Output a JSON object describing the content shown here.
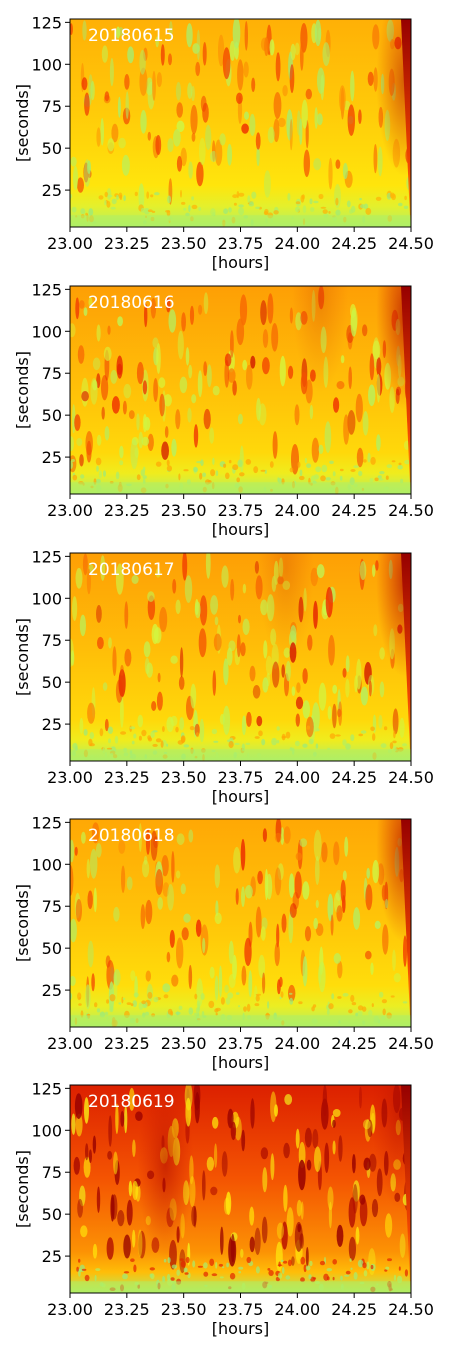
{
  "chart_data": [
    {
      "type": "heatmap",
      "title": "20180615",
      "xlabel": "[hours]",
      "ylabel": "[seconds]",
      "xlim": [
        23.0,
        24.5
      ],
      "ylim": [
        3,
        127
      ],
      "x_ticks": [
        "23.00",
        "23.25",
        "23.50",
        "23.75",
        "24.00",
        "24.25",
        "24.50"
      ],
      "y_ticks": [
        "25",
        "50",
        "75",
        "100",
        "125"
      ],
      "colormap": "jet-like (green-yellow-orange-red)",
      "intensity": 0.45,
      "dark_zones": [
        {
          "x": 24.47,
          "y": 90,
          "strength": 0.55
        }
      ]
    },
    {
      "type": "heatmap",
      "title": "20180616",
      "xlabel": "[hours]",
      "ylabel": "[seconds]",
      "xlim": [
        23.0,
        24.5
      ],
      "ylim": [
        3,
        127
      ],
      "x_ticks": [
        "23.00",
        "23.25",
        "23.50",
        "23.75",
        "24.00",
        "24.25",
        "24.50"
      ],
      "y_ticks": [
        "25",
        "50",
        "75",
        "100",
        "125"
      ],
      "colormap": "jet-like (green-yellow-orange-red)",
      "intensity": 0.5,
      "dark_zones": [
        {
          "x": 24.47,
          "y": 110,
          "strength": 0.7
        },
        {
          "x": 24.1,
          "y": 120,
          "strength": 0.2
        }
      ]
    },
    {
      "type": "heatmap",
      "title": "20180617",
      "xlabel": "[hours]",
      "ylabel": "[seconds]",
      "xlim": [
        23.0,
        24.5
      ],
      "ylim": [
        3,
        127
      ],
      "x_ticks": [
        "23.00",
        "23.25",
        "23.50",
        "23.75",
        "24.00",
        "24.25",
        "24.50"
      ],
      "y_ticks": [
        "25",
        "50",
        "75",
        "100",
        "125"
      ],
      "colormap": "jet-like (green-yellow-orange-red)",
      "intensity": 0.5,
      "dark_zones": [
        {
          "x": 24.47,
          "y": 110,
          "strength": 0.7
        },
        {
          "x": 23.95,
          "y": 118,
          "strength": 0.2
        }
      ]
    },
    {
      "type": "heatmap",
      "title": "20180618",
      "xlabel": "[hours]",
      "ylabel": "[seconds]",
      "xlim": [
        23.0,
        24.5
      ],
      "ylim": [
        3,
        127
      ],
      "x_ticks": [
        "23.00",
        "23.25",
        "23.50",
        "23.75",
        "24.00",
        "24.25",
        "24.50"
      ],
      "y_ticks": [
        "25",
        "50",
        "75",
        "100",
        "125"
      ],
      "colormap": "jet-like (green-yellow-orange-red)",
      "intensity": 0.48,
      "dark_zones": [
        {
          "x": 24.47,
          "y": 110,
          "strength": 0.7
        }
      ]
    },
    {
      "type": "heatmap",
      "title": "20180619",
      "xlabel": "[hours]",
      "ylabel": "[seconds]",
      "xlim": [
        23.0,
        24.5
      ],
      "ylim": [
        3,
        127
      ],
      "x_ticks": [
        "23.00",
        "23.25",
        "23.50",
        "23.75",
        "24.00",
        "24.25",
        "24.50"
      ],
      "y_ticks": [
        "25",
        "50",
        "75",
        "100",
        "125"
      ],
      "colormap": "jet-like (green-yellow-orange-red)",
      "intensity": 0.72,
      "dark_zones": [
        {
          "x": 23.42,
          "y": 80,
          "strength": 0.6
        },
        {
          "x": 24.45,
          "y": 110,
          "strength": 0.5
        }
      ]
    }
  ]
}
